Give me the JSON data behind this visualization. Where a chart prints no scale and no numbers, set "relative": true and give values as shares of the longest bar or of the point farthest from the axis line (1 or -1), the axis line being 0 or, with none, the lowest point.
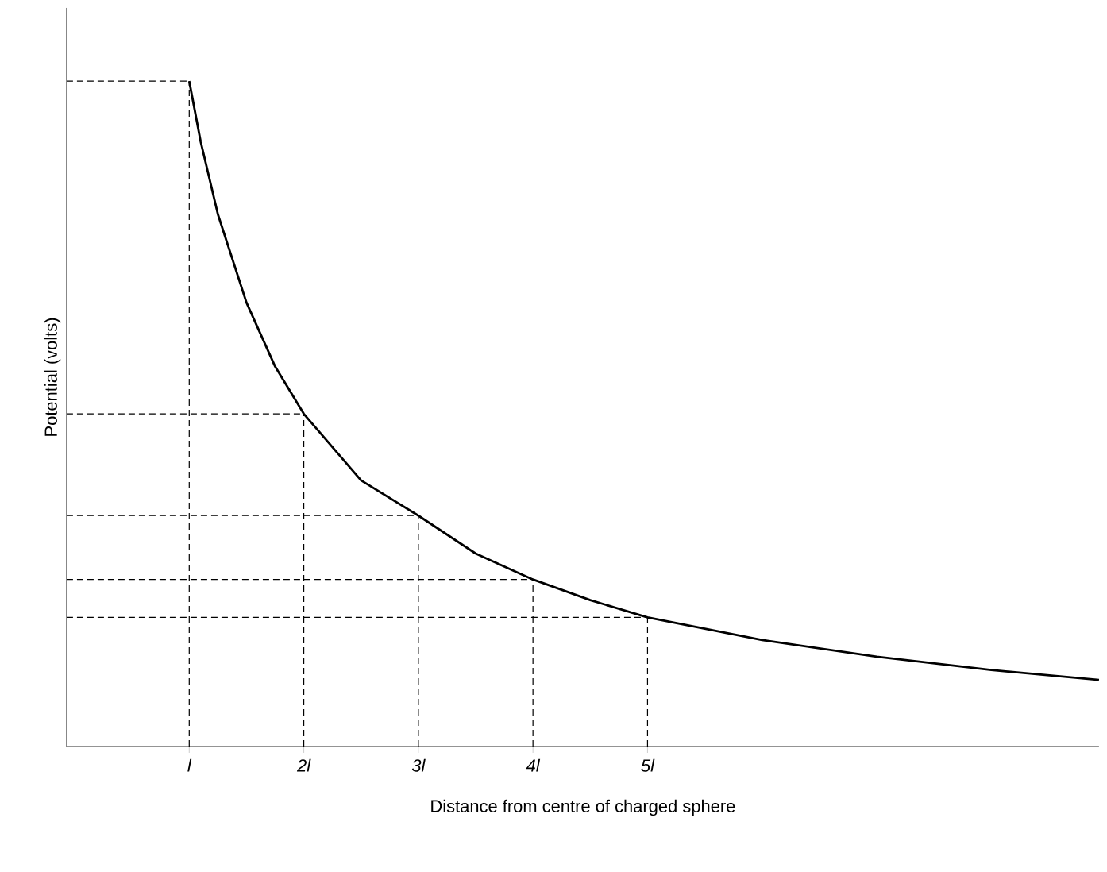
{
  "chart_data": {
    "type": "line",
    "relative": true,
    "xlabel": "Distance from centre of charged sphere",
    "ylabel": "Potential (volts)",
    "xlim": [
      -0.07,
      8.94
    ],
    "xticks": [
      {
        "value": 1,
        "label": "l"
      },
      {
        "value": 2,
        "label": "2l"
      },
      {
        "value": 3,
        "label": "3l"
      },
      {
        "value": 4,
        "label": "4l"
      },
      {
        "value": 5,
        "label": "5l"
      }
    ],
    "series": [
      {
        "color": "#000000",
        "x": [
          1,
          1.1,
          1.25,
          1.5,
          1.75,
          2,
          2.5,
          3,
          3.5,
          4,
          4.5,
          5,
          6,
          7,
          8,
          8.94
        ],
        "values": [
          1,
          0.909,
          0.8,
          0.667,
          0.571,
          0.5,
          0.4,
          0.347,
          0.29,
          0.251,
          0.22,
          0.194,
          0.16,
          0.135,
          0.115,
          0.1
        ]
      }
    ],
    "ref_lines": [
      {
        "axis": "x",
        "value": 1,
        "line_style": "dashed"
      },
      {
        "axis": "x",
        "value": 2,
        "line_style": "dashed"
      },
      {
        "axis": "x",
        "value": 3,
        "line_style": "dashed"
      },
      {
        "axis": "x",
        "value": 4,
        "line_style": "dashed"
      },
      {
        "axis": "x",
        "value": 5,
        "line_style": "dashed"
      },
      {
        "axis": "y",
        "value": 1,
        "line_style": "dashed"
      },
      {
        "axis": "y",
        "value": 0.5,
        "line_style": "dashed"
      },
      {
        "axis": "y",
        "value": 0.347,
        "line_style": "dashed"
      },
      {
        "axis": "y",
        "value": 0.251,
        "line_style": "dashed"
      },
      {
        "axis": "y",
        "value": 0.194,
        "line_style": "dashed"
      }
    ],
    "grid": false,
    "marker": "none",
    "line_style": "solid"
  }
}
